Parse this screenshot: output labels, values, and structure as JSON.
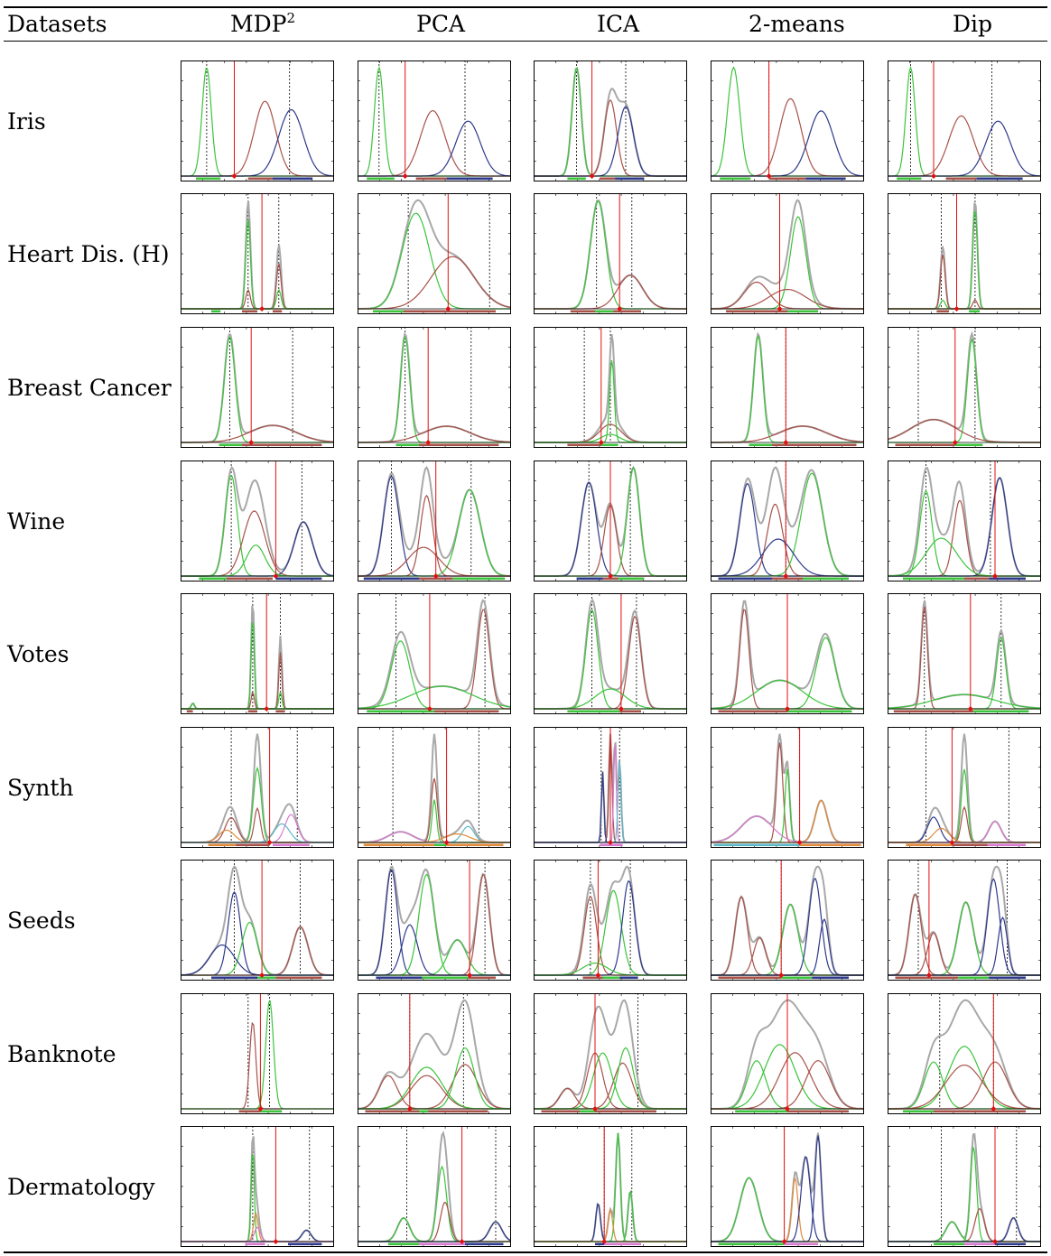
{
  "table": {
    "header": {
      "datasets": "Datasets",
      "mdp": "MDP",
      "mdp_sup": "2",
      "pca": "PCA",
      "ica": "ICA",
      "kmeans": "2-means",
      "dip": "Dip"
    },
    "methods": [
      "MDP2",
      "PCA",
      "ICA",
      "2-means",
      "Dip"
    ],
    "rows": [
      {
        "label": "Iris"
      },
      {
        "label": "Heart Dis. (H)"
      },
      {
        "label": "Breast Cancer"
      },
      {
        "label": "Wine"
      },
      {
        "label": "Votes"
      },
      {
        "label": "Synth"
      },
      {
        "label": "Seeds"
      },
      {
        "label": "Banknote"
      },
      {
        "label": "Dermatology"
      }
    ]
  },
  "colors": {
    "total_density": "#a8a8a8",
    "green_class": "#3cc43c",
    "brown_class": "#a8524a",
    "blue_class": "#2e3a8c",
    "orange_class": "#e08a3c",
    "pink_class": "#d87ad0",
    "cyan_class": "#5cb8c8",
    "split_line": "#e01010",
    "boundary_line": "#000000"
  }
}
